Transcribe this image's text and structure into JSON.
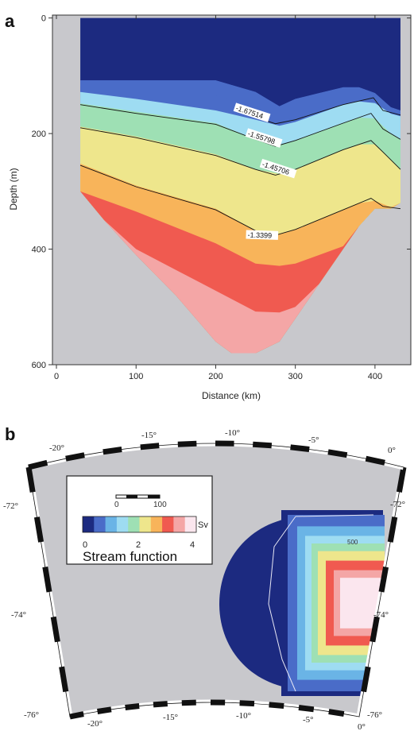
{
  "colors": {
    "background_gray": "#c8c8cc",
    "levels": [
      "#1c2a80",
      "#4a6cc8",
      "#6ab4e6",
      "#9edcf2",
      "#9ee0b4",
      "#eee68c",
      "#f8b45a",
      "#f05a50",
      "#f4a6a6",
      "#fbe6ee"
    ]
  },
  "chart_data": [
    {
      "panel": "a",
      "type": "heatmap",
      "xlabel": "Distance (km)",
      "ylabel": "Depth (m)",
      "xlim": [
        -5,
        445
      ],
      "ylim": [
        600,
        -5
      ],
      "x_ticks": [
        0,
        100,
        200,
        300,
        400
      ],
      "y_ticks": [
        0,
        200,
        400,
        600
      ],
      "bottom_depth_profile": {
        "x": [
          30,
          60,
          100,
          150,
          200,
          220,
          250,
          280,
          300,
          330,
          360,
          380,
          400,
          420,
          432
        ],
        "depth": [
          300,
          350,
          410,
          480,
          560,
          580,
          580,
          560,
          520,
          460,
          400,
          360,
          330,
          330,
          320
        ]
      },
      "level_boundaries": [
        {
          "x": [
            30,
            100,
            200,
            250,
            275,
            300,
            360,
            395,
            410,
            432
          ],
          "depth": [
            108,
            108,
            108,
            128,
            156,
            140,
            120,
            120,
            150,
            160
          ]
        },
        {
          "x": [
            30,
            100,
            200,
            250,
            275,
            300,
            360,
            395,
            410,
            432
          ],
          "depth": [
            128,
            140,
            160,
            176,
            188,
            180,
            150,
            140,
            162,
            170
          ]
        },
        {
          "x": [
            30,
            100,
            200,
            250,
            275,
            300,
            360,
            395,
            410,
            432
          ],
          "depth": [
            148,
            162,
            182,
            210,
            222,
            212,
            182,
            165,
            192,
            210
          ]
        },
        {
          "x": [
            30,
            100,
            200,
            250,
            275,
            300,
            360,
            395,
            410,
            432
          ],
          "depth": [
            188,
            205,
            236,
            262,
            272,
            262,
            228,
            212,
            232,
            262
          ]
        },
        {
          "x": [
            30,
            100,
            200,
            250,
            275,
            300,
            360,
            395,
            410,
            432
          ],
          "depth": [
            252,
            290,
            330,
            368,
            376,
            366,
            332,
            312,
            325,
            330
          ]
        },
        {
          "x": [
            30,
            100,
            200,
            250,
            275,
            300,
            360,
            395,
            410,
            432
          ],
          "depth": [
            300,
            335,
            390,
            425,
            430,
            425,
            395,
            365,
            355,
            330
          ]
        },
        {
          "x": [
            30,
            100,
            200,
            250,
            275,
            300,
            360,
            395,
            410,
            432
          ],
          "depth": [
            338,
            400,
            472,
            508,
            512,
            500,
            455,
            400,
            360,
            330
          ]
        }
      ],
      "contours": [
        {
          "label": "-1.67514",
          "label_x": 225,
          "label_depth": 158,
          "x": [
            225,
            255,
            275,
            300,
            360,
            398,
            410,
            432
          ],
          "depth": [
            158,
            174,
            183,
            176,
            150,
            138,
            160,
            168
          ]
        },
        {
          "label": "-1.55798",
          "label_x": 240,
          "label_depth": 202,
          "x": [
            30,
            100,
            200,
            250,
            275,
            300,
            360,
            395,
            410,
            432
          ],
          "depth": [
            150,
            165,
            184,
            210,
            222,
            212,
            182,
            165,
            192,
            210
          ]
        },
        {
          "label": "-1.45706",
          "label_x": 258,
          "label_depth": 255,
          "x": [
            30,
            100,
            200,
            250,
            275,
            300,
            360,
            395,
            410,
            432
          ],
          "depth": [
            190,
            207,
            238,
            262,
            272,
            262,
            228,
            212,
            232,
            262
          ]
        },
        {
          "label": "-1.3399",
          "label_x": 240,
          "label_depth": 378,
          "x": [
            30,
            100,
            200,
            250,
            275,
            300,
            360,
            395,
            410,
            432
          ],
          "depth": [
            255,
            292,
            332,
            368,
            376,
            366,
            332,
            312,
            326,
            330
          ]
        }
      ]
    },
    {
      "panel": "b",
      "type": "heatmap",
      "lon_ticks": [
        "-20°",
        "-15°",
        "-10°",
        "-5°",
        "0°"
      ],
      "lat_ticks": [
        "-72°",
        "-74°",
        "-76°"
      ],
      "legend": {
        "scale_bar_labels": [
          "0",
          "100"
        ],
        "colorbar_min": 0,
        "colorbar_max": 4,
        "colorbar_ticks": [
          "0",
          "2",
          "4"
        ],
        "unit": "Sv",
        "title": "Stream function"
      },
      "annotation": "500"
    }
  ]
}
